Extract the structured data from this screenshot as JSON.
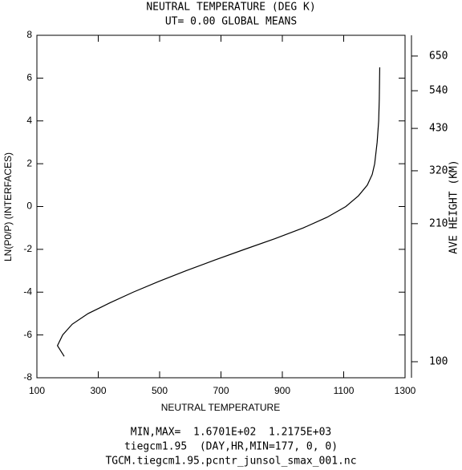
{
  "chart_data": {
    "type": "line",
    "title": "NEUTRAL TEMPERATURE (DEG K)",
    "subtitle": "UT= 0.00 GLOBAL MEANS",
    "xlabel": "NEUTRAL TEMPERATURE",
    "ylabel": "LN(P0/P) (INTERFACES)",
    "y2label": "AVE HEIGHT (KM)",
    "footer": [
      "MIN,MAX=  1.6701E+02  1.2175E+03",
      "tiegcm1.95  (DAY,HR,MIN=177, 0, 0)",
      "TGCM.tiegcm1.95.pcntr_junsol_smax_001.nc"
    ],
    "series": [
      {
        "color": "#000000",
        "x": [
          189,
          167,
          184,
          215,
          267,
          338,
          414,
          497,
          586,
          680,
          777,
          876,
          968,
          1046,
          1107,
          1148,
          1177,
          1193,
          1201,
          1209,
          1214,
          1216,
          1217,
          1217.5
        ],
        "values": [
          -7,
          -6.5,
          -6,
          -5.5,
          -5,
          -4.5,
          -4,
          -3.5,
          -3,
          -2.5,
          -2,
          -1.5,
          -1,
          -0.5,
          0,
          0.5,
          1,
          1.5,
          2,
          3,
          4,
          5,
          6,
          6.5
        ]
      }
    ],
    "xlim": [
      100,
      1300
    ],
    "xticks": [
      100,
      300,
      500,
      700,
      900,
      1100,
      1300
    ],
    "ylim": [
      -8,
      8
    ],
    "yticks": [
      -8,
      -6,
      -4,
      -2,
      0,
      2,
      4,
      6,
      8
    ],
    "y2ticks": [
      100,
      210,
      320,
      430,
      540,
      650
    ],
    "y2tick_levels": [
      -7.25,
      -0.8,
      1.67,
      3.65,
      5.41,
      7.03
    ],
    "grid": false
  }
}
